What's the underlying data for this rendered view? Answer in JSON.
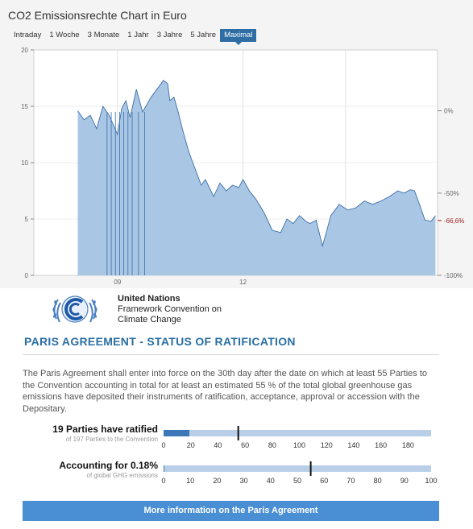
{
  "chart_title": "CO2 Emissionsrechte Chart in Euro",
  "tabs": [
    {
      "label": "Intraday",
      "active": false
    },
    {
      "label": "1 Woche",
      "active": false
    },
    {
      "label": "3 Monate",
      "active": false
    },
    {
      "label": "1 Jahr",
      "active": false
    },
    {
      "label": "3 Jahre",
      "active": false
    },
    {
      "label": "5 Jahre",
      "active": false
    },
    {
      "label": "Maximal",
      "active": true
    }
  ],
  "chart_data": {
    "type": "area",
    "ylim": [
      0,
      20
    ],
    "y_ticks": [
      "0",
      "5",
      "10",
      "15",
      "20"
    ],
    "x_ticks": [
      "09",
      "12"
    ],
    "right_ticks": [
      "0%",
      "-50%",
      "-66,6%",
      "-100%"
    ],
    "right_tick_values": [
      14.6,
      7.3,
      4.87,
      0
    ],
    "highlight_tick": "-66,6%",
    "x": [
      "2008.05",
      "2008.2",
      "2008.35",
      "2008.5",
      "2008.65",
      "2008.8",
      "2009.0",
      "2009.1",
      "2009.2",
      "2009.3",
      "2009.45",
      "2009.6",
      "2009.8",
      "2010.0",
      "2010.1",
      "2010.2",
      "2010.25",
      "2010.35",
      "2010.45",
      "2010.55",
      "2010.7",
      "2010.85",
      "2011.0",
      "2011.1",
      "2011.3",
      "2011.45",
      "2011.6",
      "2011.75",
      "2011.9",
      "2012.0",
      "2012.15",
      "2012.3",
      "2012.5",
      "2012.7",
      "2012.9",
      "2013.05",
      "2013.2",
      "2013.35",
      "2013.5",
      "2013.6",
      "2013.75",
      "2013.9",
      "2014.1",
      "2014.3",
      "2014.5",
      "2014.7",
      "2014.9",
      "2015.1",
      "2015.3",
      "2015.5",
      "2015.7",
      "2015.85",
      "2016.0",
      "2016.1",
      "2016.2",
      "2016.35",
      "2016.5",
      "2016.6"
    ],
    "values": [
      14.6,
      13.8,
      14.2,
      13.0,
      15.0,
      14.2,
      12.5,
      14.8,
      15.5,
      14.0,
      16.5,
      14.5,
      15.8,
      16.8,
      17.3,
      17.0,
      15.5,
      15.8,
      14.5,
      13.0,
      11.0,
      9.5,
      8.0,
      8.5,
      7.0,
      8.2,
      7.5,
      8.0,
      7.8,
      8.5,
      7.5,
      6.8,
      5.6,
      4.0,
      3.8,
      5.0,
      4.6,
      5.3,
      4.8,
      4.6,
      4.9,
      2.6,
      5.3,
      6.3,
      5.8,
      6.0,
      6.6,
      6.3,
      6.6,
      7.0,
      7.5,
      7.3,
      7.6,
      7.5,
      6.5,
      4.9,
      4.8,
      5.3
    ]
  },
  "unfccc": {
    "org": "United Nations",
    "line2": "Framework Convention on",
    "line3": "Climate Change"
  },
  "section_title": "PARIS AGREEMENT - STATUS OF RATIFICATION",
  "description": "The Paris Agreement shall enter into force on the 30th day after the date on which at least 55 Parties to the Convention accounting in total for at least an estimated 55 % of the total global greenhouse gas emissions have deposited their instruments of ratification, acceptance, approval or accession with the Depositary.",
  "progress": [
    {
      "title": "19 Parties have ratified",
      "subtitle": "of 197 Parties to the Convention",
      "value": 19,
      "threshold": 55,
      "max": 197,
      "ticks": [
        0,
        20,
        40,
        60,
        80,
        100,
        120,
        140,
        160,
        180
      ]
    },
    {
      "title": "Accounting for 0.18%",
      "subtitle": "of global GHG emissions",
      "value": 0.18,
      "threshold": 55,
      "max": 100,
      "ticks": [
        0,
        10,
        20,
        30,
        40,
        50,
        60,
        70,
        80,
        90,
        100
      ]
    }
  ],
  "more_button": "More information on the Paris Agreement",
  "colors": {
    "accent": "#2f6da5",
    "area_fill": "#a9c6e4",
    "area_line": "#3b6fa8",
    "highlight": "#a02020",
    "button": "#4a8fd3"
  }
}
